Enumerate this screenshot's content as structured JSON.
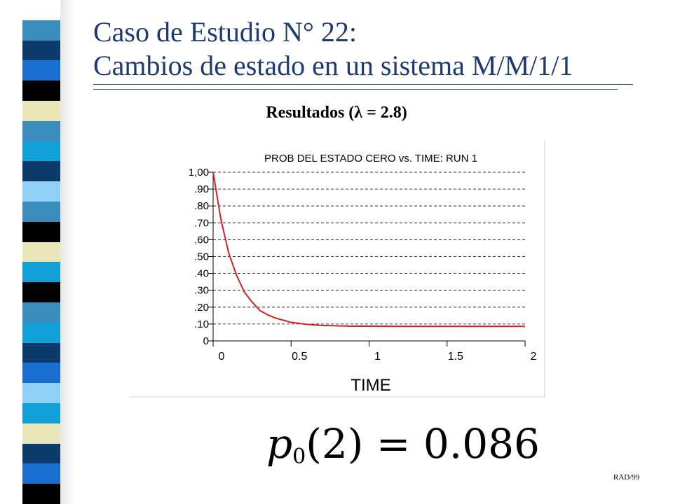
{
  "slide": {
    "title_line1": "Caso de Estudio N° 22:",
    "title_line2": "Cambios de estado en un sistema M/M/1/1",
    "subtitle": "Resultados (λ = 2.8)",
    "equation": {
      "lhs_symbol": "p",
      "lhs_subscript": "0",
      "lhs_argument": "(2)",
      "operator": "=",
      "rhs": "0.086"
    },
    "footer": "RAD/99",
    "accent_color": "#1e3a73",
    "stripe_colors": [
      "#ffffff",
      "#3a8dbd",
      "#0b3a6b",
      "#1a6fd0",
      "#000000",
      "#e8e6b8",
      "#3a8dbd",
      "#12a0d8",
      "#0b3a6b",
      "#8fd0f5",
      "#3a8dbd",
      "#000000",
      "#e8e6b8",
      "#12a0d8",
      "#000000",
      "#3a8dbd",
      "#12a0d8",
      "#0b3a6b",
      "#1a6fd0",
      "#8fd0f5",
      "#12a0d8",
      "#e8e6b8",
      "#0b3a6b",
      "#1a6fd0",
      "#000000"
    ]
  },
  "chart_data": {
    "type": "line",
    "title": "PROB DEL ESTADO CERO vs. TIME: RUN 1",
    "xlabel": "TIME",
    "ylabel": "",
    "xlim": [
      0,
      2
    ],
    "ylim": [
      0,
      1
    ],
    "x_ticks": [
      0,
      0.5,
      1,
      1.5,
      2
    ],
    "x_tick_labels": [
      "0",
      "0.5",
      "1",
      "1.5",
      "2"
    ],
    "y_ticks": [
      0,
      0.1,
      0.2,
      0.3,
      0.4,
      0.5,
      0.6,
      0.7,
      0.8,
      0.9,
      1.0
    ],
    "y_tick_labels": [
      "0",
      ".10",
      ".20",
      ".30",
      ".40",
      ".50",
      ".60",
      ".70",
      ".80",
      ".90",
      "1,00"
    ],
    "grid": "horizontal-dashed",
    "line_color": "#d42020",
    "series": [
      {
        "x": [
          0,
          0.05,
          0.1,
          0.15,
          0.2,
          0.25,
          0.3,
          0.35,
          0.4,
          0.5,
          0.6,
          0.7,
          0.8,
          0.9,
          1.0,
          1.2,
          1.4,
          1.6,
          1.8,
          2.0
        ],
        "values": [
          1.0,
          0.72,
          0.52,
          0.39,
          0.29,
          0.23,
          0.18,
          0.155,
          0.135,
          0.11,
          0.098,
          0.092,
          0.089,
          0.087,
          0.087,
          0.086,
          0.086,
          0.086,
          0.086,
          0.086
        ]
      }
    ]
  }
}
